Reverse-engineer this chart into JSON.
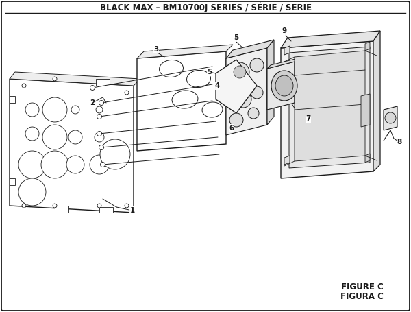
{
  "title": "BLACK MAX – BM10700J SERIES / SÉRIE / SERIE",
  "figure_label": "FIGURE C",
  "figura_label": "FIGURA C",
  "bg_color": "#ffffff",
  "lc": "#1a1a1a",
  "title_fontsize": 8.5,
  "label_fontsize": 7.5,
  "fig_label_fontsize": 8.5
}
